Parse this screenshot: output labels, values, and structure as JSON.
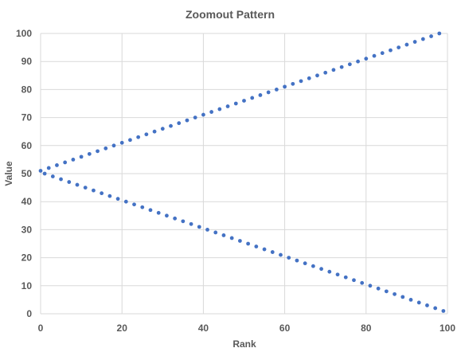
{
  "chart_data": {
    "type": "scatter",
    "title": "Zoomout Pattern",
    "xlabel": "Rank",
    "ylabel": "Value",
    "xlim": [
      0,
      100
    ],
    "ylim": [
      0,
      100
    ],
    "xticks": [
      0,
      20,
      40,
      60,
      80,
      100
    ],
    "yticks": [
      0,
      10,
      20,
      30,
      40,
      50,
      60,
      70,
      80,
      90,
      100
    ],
    "grid": true,
    "marker_color": "#4472c4",
    "series": [
      {
        "points": [
          [
            0,
            51
          ],
          [
            2,
            52
          ],
          [
            4,
            53
          ],
          [
            6,
            54
          ],
          [
            8,
            55
          ],
          [
            10,
            56
          ],
          [
            12,
            57
          ],
          [
            14,
            58
          ],
          [
            16,
            59
          ],
          [
            18,
            60
          ],
          [
            20,
            61
          ],
          [
            22,
            62
          ],
          [
            24,
            63
          ],
          [
            26,
            64
          ],
          [
            28,
            65
          ],
          [
            30,
            66
          ],
          [
            32,
            67
          ],
          [
            34,
            68
          ],
          [
            36,
            69
          ],
          [
            38,
            70
          ],
          [
            40,
            71
          ],
          [
            42,
            72
          ],
          [
            44,
            73
          ],
          [
            46,
            74
          ],
          [
            48,
            75
          ],
          [
            50,
            76
          ],
          [
            52,
            77
          ],
          [
            54,
            78
          ],
          [
            56,
            79
          ],
          [
            58,
            80
          ],
          [
            60,
            81
          ],
          [
            62,
            82
          ],
          [
            64,
            83
          ],
          [
            66,
            84
          ],
          [
            68,
            85
          ],
          [
            70,
            86
          ],
          [
            72,
            87
          ],
          [
            74,
            88
          ],
          [
            76,
            89
          ],
          [
            78,
            90
          ],
          [
            80,
            91
          ],
          [
            82,
            92
          ],
          [
            84,
            93
          ],
          [
            86,
            94
          ],
          [
            88,
            95
          ],
          [
            90,
            96
          ],
          [
            92,
            97
          ],
          [
            94,
            98
          ],
          [
            96,
            99
          ],
          [
            98,
            100
          ]
        ]
      },
      {
        "points": [
          [
            1,
            50
          ],
          [
            3,
            49
          ],
          [
            5,
            48
          ],
          [
            7,
            47
          ],
          [
            9,
            46
          ],
          [
            11,
            45
          ],
          [
            13,
            44
          ],
          [
            15,
            43
          ],
          [
            17,
            42
          ],
          [
            19,
            41
          ],
          [
            21,
            40
          ],
          [
            23,
            39
          ],
          [
            25,
            38
          ],
          [
            27,
            37
          ],
          [
            29,
            36
          ],
          [
            31,
            35
          ],
          [
            33,
            34
          ],
          [
            35,
            33
          ],
          [
            37,
            32
          ],
          [
            39,
            31
          ],
          [
            41,
            30
          ],
          [
            43,
            29
          ],
          [
            45,
            28
          ],
          [
            47,
            27
          ],
          [
            49,
            26
          ],
          [
            51,
            25
          ],
          [
            53,
            24
          ],
          [
            55,
            23
          ],
          [
            57,
            22
          ],
          [
            59,
            21
          ],
          [
            61,
            20
          ],
          [
            63,
            19
          ],
          [
            65,
            18
          ],
          [
            67,
            17
          ],
          [
            69,
            16
          ],
          [
            71,
            15
          ],
          [
            73,
            14
          ],
          [
            75,
            13
          ],
          [
            77,
            12
          ],
          [
            79,
            11
          ],
          [
            81,
            10
          ],
          [
            83,
            9
          ],
          [
            85,
            8
          ],
          [
            87,
            7
          ],
          [
            89,
            6
          ],
          [
            91,
            5
          ],
          [
            93,
            4
          ],
          [
            95,
            3
          ],
          [
            97,
            2
          ],
          [
            99,
            1
          ]
        ]
      }
    ]
  }
}
